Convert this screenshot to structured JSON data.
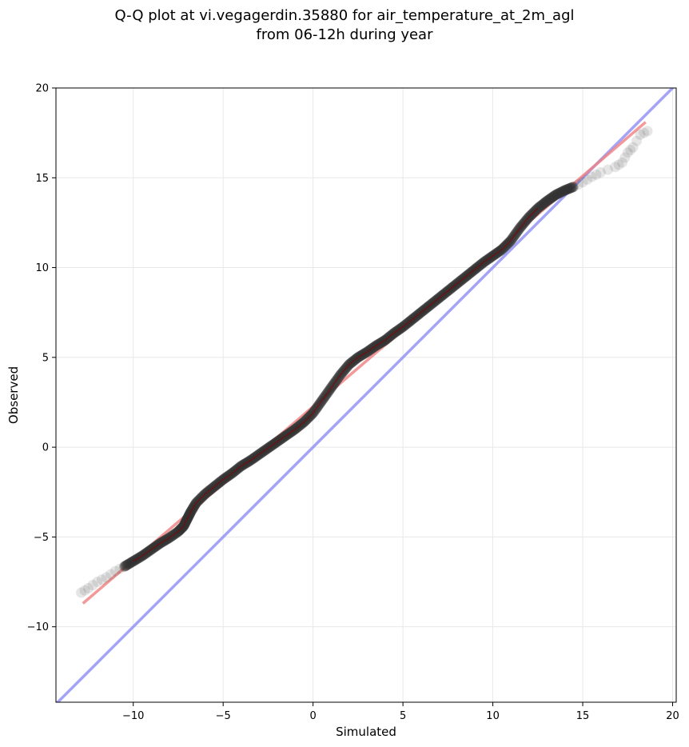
{
  "chart_data": {
    "type": "scatter",
    "title_line1": "Q-Q plot at vi.vegagerdin.35880 for air_temperature_at_2m_agl",
    "title_line2": "from 06-12h during year",
    "xlabel": "Simulated",
    "ylabel": "Observed",
    "xlim": [
      -14.3,
      20.2
    ],
    "ylim": [
      -14.2,
      20.0
    ],
    "xticks": [
      -10,
      -5,
      0,
      5,
      10,
      15,
      20
    ],
    "yticks": [
      -10,
      -5,
      0,
      5,
      10,
      15,
      20
    ],
    "xtick_labels": [
      "−10",
      "−5",
      "0",
      "5",
      "10",
      "15",
      "20"
    ],
    "ytick_labels": [
      "−10",
      "−5",
      "0",
      "5",
      "10",
      "15",
      "20"
    ],
    "grid": true,
    "quantile_curve": [
      [
        -12.9,
        -8.1
      ],
      [
        -12.5,
        -7.85
      ],
      [
        -12.0,
        -7.5
      ],
      [
        -11.5,
        -7.25
      ],
      [
        -11.0,
        -6.9
      ],
      [
        -10.5,
        -6.65
      ],
      [
        -10.0,
        -6.35
      ],
      [
        -9.5,
        -6.05
      ],
      [
        -9.0,
        -5.7
      ],
      [
        -8.5,
        -5.35
      ],
      [
        -8.0,
        -5.05
      ],
      [
        -7.5,
        -4.7
      ],
      [
        -7.2,
        -4.4
      ],
      [
        -7.0,
        -4.0
      ],
      [
        -6.8,
        -3.6
      ],
      [
        -6.5,
        -3.1
      ],
      [
        -6.0,
        -2.6
      ],
      [
        -5.5,
        -2.2
      ],
      [
        -5.0,
        -1.8
      ],
      [
        -4.5,
        -1.45
      ],
      [
        -4.0,
        -1.05
      ],
      [
        -3.5,
        -0.75
      ],
      [
        -3.0,
        -0.4
      ],
      [
        -2.5,
        -0.05
      ],
      [
        -2.0,
        0.3
      ],
      [
        -1.5,
        0.65
      ],
      [
        -1.0,
        1.0
      ],
      [
        -0.5,
        1.4
      ],
      [
        0.0,
        1.9
      ],
      [
        0.5,
        2.6
      ],
      [
        1.0,
        3.3
      ],
      [
        1.5,
        4.0
      ],
      [
        2.0,
        4.6
      ],
      [
        2.5,
        5.0
      ],
      [
        3.0,
        5.3
      ],
      [
        3.5,
        5.65
      ],
      [
        4.0,
        5.95
      ],
      [
        4.5,
        6.35
      ],
      [
        5.0,
        6.7
      ],
      [
        5.5,
        7.1
      ],
      [
        6.0,
        7.5
      ],
      [
        6.5,
        7.9
      ],
      [
        7.0,
        8.3
      ],
      [
        7.5,
        8.7
      ],
      [
        8.0,
        9.1
      ],
      [
        8.5,
        9.5
      ],
      [
        9.0,
        9.9
      ],
      [
        9.5,
        10.3
      ],
      [
        10.0,
        10.65
      ],
      [
        10.5,
        11.0
      ],
      [
        11.0,
        11.5
      ],
      [
        11.5,
        12.2
      ],
      [
        12.0,
        12.8
      ],
      [
        12.5,
        13.3
      ],
      [
        13.0,
        13.7
      ],
      [
        13.5,
        14.05
      ],
      [
        14.0,
        14.3
      ],
      [
        14.5,
        14.5
      ],
      [
        15.0,
        14.75
      ],
      [
        15.5,
        15.05
      ],
      [
        16.0,
        15.3
      ],
      [
        16.8,
        15.6
      ],
      [
        17.2,
        15.85
      ],
      [
        17.5,
        16.4
      ],
      [
        17.8,
        16.7
      ],
      [
        18.2,
        17.4
      ],
      [
        18.6,
        17.6
      ]
    ],
    "fit_line": {
      "x": [
        -12.8,
        18.5
      ],
      "y": [
        -8.7,
        18.1
      ]
    },
    "identity_line": {
      "x": [
        -14.3,
        20.2
      ],
      "y": [
        -14.3,
        20.2
      ]
    },
    "colors": {
      "points": "#333333",
      "fit_line": "#f08080",
      "identity_line": "#8c8cf5",
      "curve_core": "#8b0000",
      "grid": "#e8e8e8"
    }
  }
}
